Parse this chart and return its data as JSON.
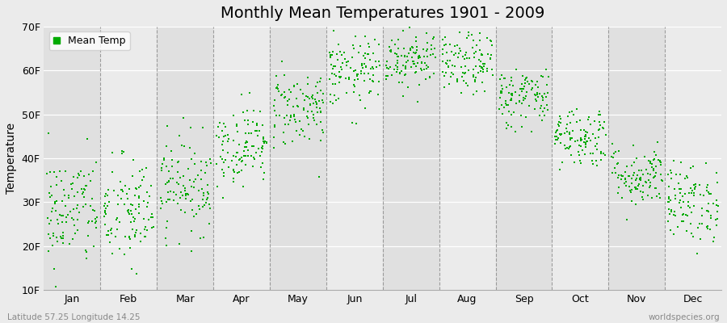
{
  "title": "Monthly Mean Temperatures 1901 - 2009",
  "ylabel": "Temperature",
  "bottom_left": "Latitude 57.25 Longitude 14.25",
  "bottom_right": "worldspecies.org",
  "legend_label": "Mean Temp",
  "dot_color": "#00AA00",
  "dot_size": 3,
  "background_color": "#EBEBEB",
  "plot_bg_color": "#EBEBEB",
  "ylim": [
    10,
    70
  ],
  "yticks": [
    10,
    20,
    30,
    40,
    50,
    60,
    70
  ],
  "ytick_labels": [
    "10F",
    "20F",
    "30F",
    "40F",
    "50F",
    "60F",
    "70F"
  ],
  "months": [
    "Jan",
    "Feb",
    "Mar",
    "Apr",
    "May",
    "Jun",
    "Jul",
    "Aug",
    "Sep",
    "Oct",
    "Nov",
    "Dec"
  ],
  "month_centers": [
    0.5,
    1.5,
    2.5,
    3.5,
    4.5,
    5.5,
    6.5,
    7.5,
    8.5,
    9.5,
    10.5,
    11.5
  ],
  "n_years": 109,
  "seed": 42,
  "monthly_means_F": [
    28.0,
    27.5,
    34.0,
    43.0,
    51.5,
    59.5,
    63.0,
    61.5,
    54.0,
    45.0,
    36.0,
    30.0
  ],
  "monthly_stds_F": [
    6.5,
    6.5,
    5.5,
    4.5,
    4.5,
    4.0,
    3.5,
    3.5,
    3.5,
    3.5,
    3.5,
    4.5
  ],
  "title_fontsize": 14,
  "axis_fontsize": 10,
  "tick_fontsize": 9,
  "legend_fontsize": 9
}
